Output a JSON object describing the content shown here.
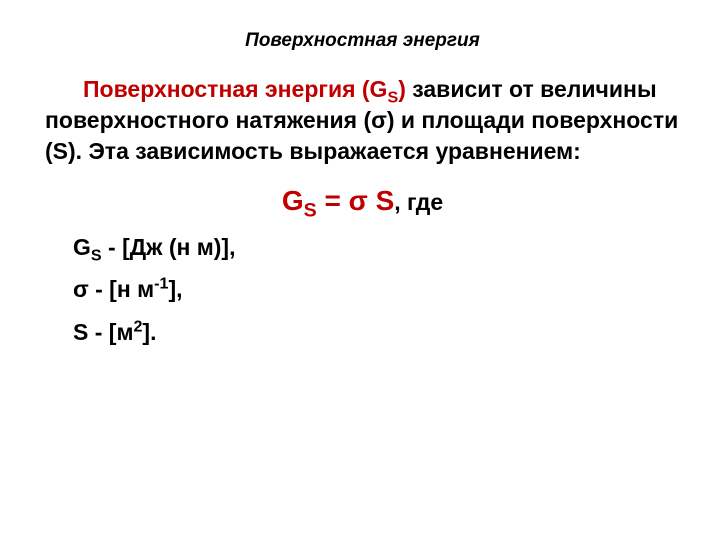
{
  "colors": {
    "accent": "#c00000",
    "text": "#000000",
    "background": "#ffffff"
  },
  "typography": {
    "title_fontsize": 19,
    "body_fontsize": 23,
    "equation_fontsize": 28,
    "font_family": "Arial",
    "title_style": "italic bold",
    "body_style": "bold"
  },
  "title": "Поверхностная энергия",
  "paragraph": {
    "lead_red": "Поверхностная энергия (G",
    "lead_sub": "S",
    "lead_red_close": ")",
    "rest": " зависит от величины поверхностного натяжения (σ) и площади поверхности (S). Эта зависимость выражается уравнением:"
  },
  "equation": {
    "G": "G",
    "S_sub": "S",
    "eq": " = σ S",
    "comma_where": ", где"
  },
  "definitions": [
    {
      "sym_pre": "G",
      "sym_sub": "S",
      "sym_sup": "",
      "rest": " - [Дж (н м)],"
    },
    {
      "sym_pre": "σ - [н м",
      "sym_sub": "",
      "sym_sup": "-1",
      "rest": "],"
    },
    {
      "sym_pre": "S - [м",
      "sym_sub": "",
      "sym_sup": "2",
      "rest": "]."
    }
  ]
}
